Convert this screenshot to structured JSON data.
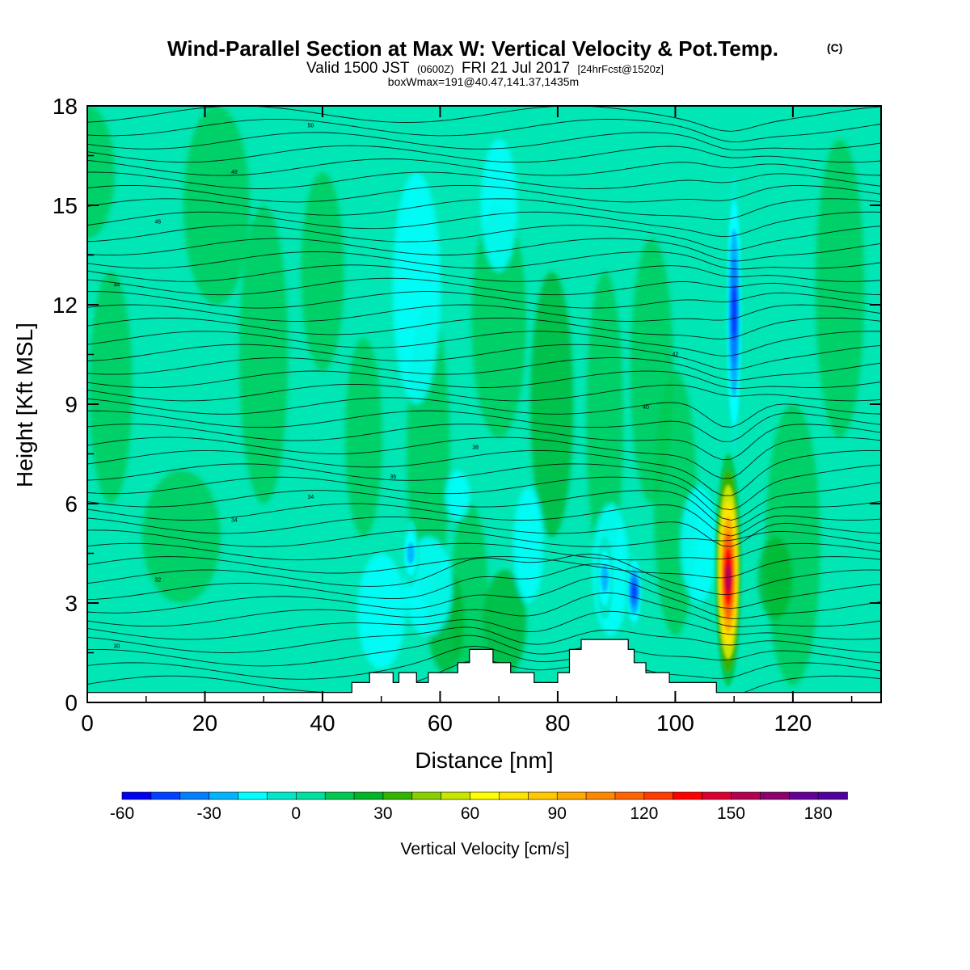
{
  "chart_data": {
    "type": "heatmap",
    "title": "Wind-Parallel Section at Max W: Vertical Velocity & Pot.Temp.",
    "title_mark": "(C)",
    "subtitle": {
      "part1": "Valid 1500 JST",
      "part2": "(0600Z)",
      "part3": "FRI 21 Jul 2017",
      "part4": "[24hrFcst@1520z]"
    },
    "subtitle2": "boxWmax=191@40.47,141.37,1435m",
    "xlabel": "Distance [nm]",
    "ylabel": "Height [Kft MSL]",
    "xlim": [
      0,
      135
    ],
    "ylim": [
      0,
      18
    ],
    "x_ticks": [
      "0",
      "20",
      "40",
      "60",
      "80",
      "100",
      "120"
    ],
    "y_ticks": [
      "0",
      "3",
      "6",
      "9",
      "12",
      "15",
      "18"
    ],
    "colorbar": {
      "title": "Vertical Velocity [cm/s]",
      "min": -60,
      "max": 190,
      "step": 10,
      "tick_labels": [
        "-60",
        "-30",
        "0",
        "30",
        "60",
        "90",
        "120",
        "150",
        "180"
      ],
      "colors": [
        "#0000f0",
        "#0040ff",
        "#0080ff",
        "#00b4ff",
        "#00ffff",
        "#00e8c8",
        "#00dfa0",
        "#00c850",
        "#00b428",
        "#33b400",
        "#88d000",
        "#c8e600",
        "#ffff00",
        "#ffe400",
        "#ffc800",
        "#ffaa00",
        "#ff8800",
        "#ff6400",
        "#ff3c00",
        "#ff0000",
        "#dc0032",
        "#b40050",
        "#8c006e",
        "#640096",
        "#50009c"
      ]
    },
    "features": [
      {
        "kind": "updraft",
        "x": 109,
        "y_bottom": 0.5,
        "y_top": 7.5,
        "peak_cm_s": 150
      },
      {
        "kind": "downdraft",
        "x": 110,
        "y_bottom": 7.5,
        "y_top": 16,
        "value_cm_s": -55
      },
      {
        "kind": "downdraft",
        "x": 93,
        "y_bottom": 2.2,
        "y_top": 4.5,
        "value_cm_s": -50
      },
      {
        "kind": "downdraft",
        "x": 55,
        "y_bottom": 3.5,
        "y_top": 5.5,
        "value_cm_s": -30
      },
      {
        "kind": "downdraft",
        "x": 88,
        "y_bottom": 2.5,
        "y_top": 5,
        "value_cm_s": -30
      }
    ],
    "theta_contours": [
      {
        "value": "30",
        "level": 1.7
      },
      {
        "value": "32",
        "level": 3.7
      },
      {
        "value": "34",
        "level": 5.5
      },
      {
        "value": "34",
        "level": 6.2
      },
      {
        "value": "36",
        "level": 6.8
      },
      {
        "value": "38",
        "level": 7.7
      },
      {
        "value": "40",
        "level": 8.9
      },
      {
        "value": "42",
        "level": 10.5
      },
      {
        "value": "44",
        "level": 12.6
      },
      {
        "value": "46",
        "level": 14.5
      },
      {
        "value": "48",
        "level": 16.0
      },
      {
        "value": "50",
        "level": 17.4
      }
    ],
    "terrain": [
      [
        0,
        0.3
      ],
      [
        45,
        0.3
      ],
      [
        45,
        0.6
      ],
      [
        48,
        0.6
      ],
      [
        48,
        0.9
      ],
      [
        52,
        0.9
      ],
      [
        52,
        0.6
      ],
      [
        53,
        0.6
      ],
      [
        53,
        0.9
      ],
      [
        56,
        0.9
      ],
      [
        56,
        0.6
      ],
      [
        58,
        0.6
      ],
      [
        58,
        0.9
      ],
      [
        63,
        0.9
      ],
      [
        63,
        1.2
      ],
      [
        65,
        1.2
      ],
      [
        65,
        1.6
      ],
      [
        69,
        1.6
      ],
      [
        69,
        1.2
      ],
      [
        72,
        1.2
      ],
      [
        72,
        0.9
      ],
      [
        76,
        0.9
      ],
      [
        76,
        0.6
      ],
      [
        80,
        0.6
      ],
      [
        80,
        0.9
      ],
      [
        82,
        0.9
      ],
      [
        82,
        1.6
      ],
      [
        84,
        1.6
      ],
      [
        84,
        1.9
      ],
      [
        92,
        1.9
      ],
      [
        92,
        1.6
      ],
      [
        93,
        1.6
      ],
      [
        93,
        1.2
      ],
      [
        95,
        1.2
      ],
      [
        95,
        0.9
      ],
      [
        99,
        0.9
      ],
      [
        99,
        0.6
      ],
      [
        107,
        0.6
      ],
      [
        107,
        0.3
      ],
      [
        135,
        0.3
      ]
    ]
  }
}
